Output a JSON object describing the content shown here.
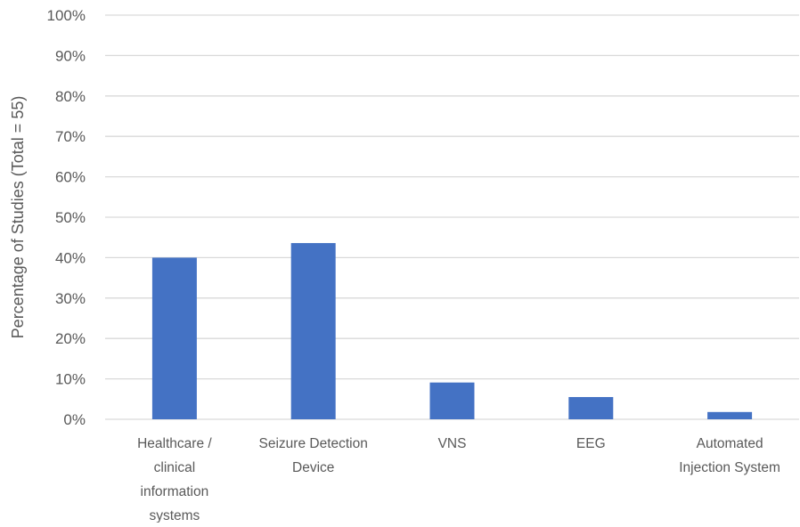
{
  "chart_data": {
    "type": "bar",
    "title": "",
    "xlabel": "",
    "ylabel": "Percentage of Studies (Total = 55)",
    "ylim": [
      0,
      100
    ],
    "y_ticks": [
      "0%",
      "10%",
      "20%",
      "30%",
      "40%",
      "50%",
      "60%",
      "70%",
      "80%",
      "90%",
      "100%"
    ],
    "categories": [
      [
        "Healthcare /",
        "clinical",
        "information",
        "systems"
      ],
      [
        "Seizure Detection",
        "Device"
      ],
      [
        "VNS"
      ],
      [
        "EEG"
      ],
      [
        "Automated",
        "Injection System"
      ]
    ],
    "values": [
      40.0,
      43.6,
      9.1,
      5.5,
      1.8
    ],
    "grid": true,
    "legend": "none",
    "bar_color": "#4472C4",
    "grid_color": "#D9D9D9",
    "text_color": "#595959"
  }
}
